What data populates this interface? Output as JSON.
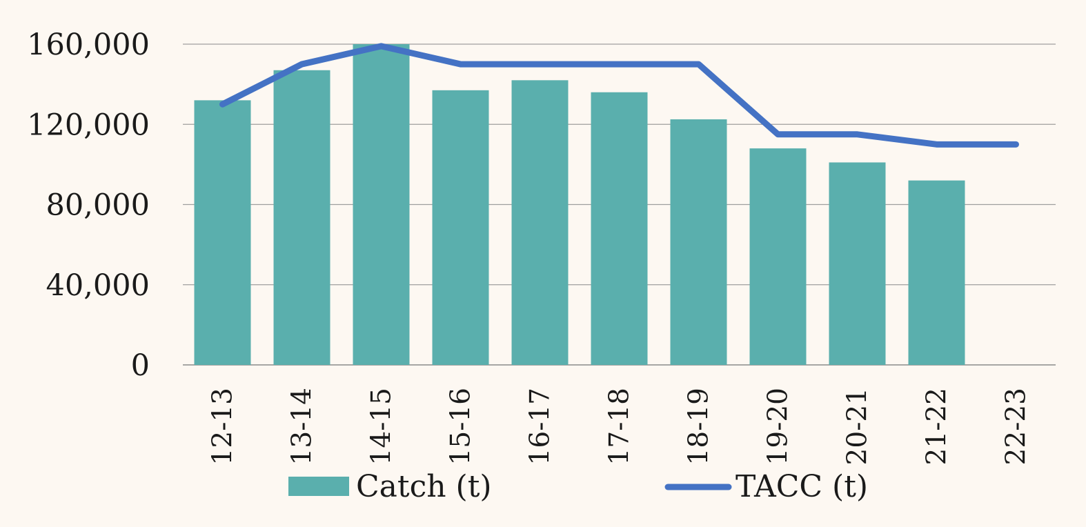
{
  "chart_data": {
    "type": "bar",
    "categories": [
      "12-13",
      "13-14",
      "14-15",
      "15-16",
      "16-17",
      "17-18",
      "18-19",
      "19-20",
      "20-21",
      "21-22",
      "22-23"
    ],
    "series": [
      {
        "name": "Catch (t)",
        "type": "bar",
        "color": "#5aafad",
        "values": [
          132000,
          147000,
          160000,
          137000,
          142000,
          136000,
          122500,
          108000,
          101000,
          92000,
          null
        ]
      },
      {
        "name": "TACC (t)",
        "type": "line",
        "color": "#4472c4",
        "values": [
          130000,
          150000,
          159000,
          150000,
          150000,
          150000,
          150000,
          115000,
          115000,
          110000,
          110000
        ]
      }
    ],
    "ylim": [
      0,
      160000
    ],
    "yticks": [
      "0",
      "40,000",
      "80,000",
      "120,000",
      "160,000"
    ],
    "ytick_values": [
      0,
      40000,
      80000,
      120000,
      160000
    ],
    "grid": true,
    "legend_position": "bottom"
  }
}
